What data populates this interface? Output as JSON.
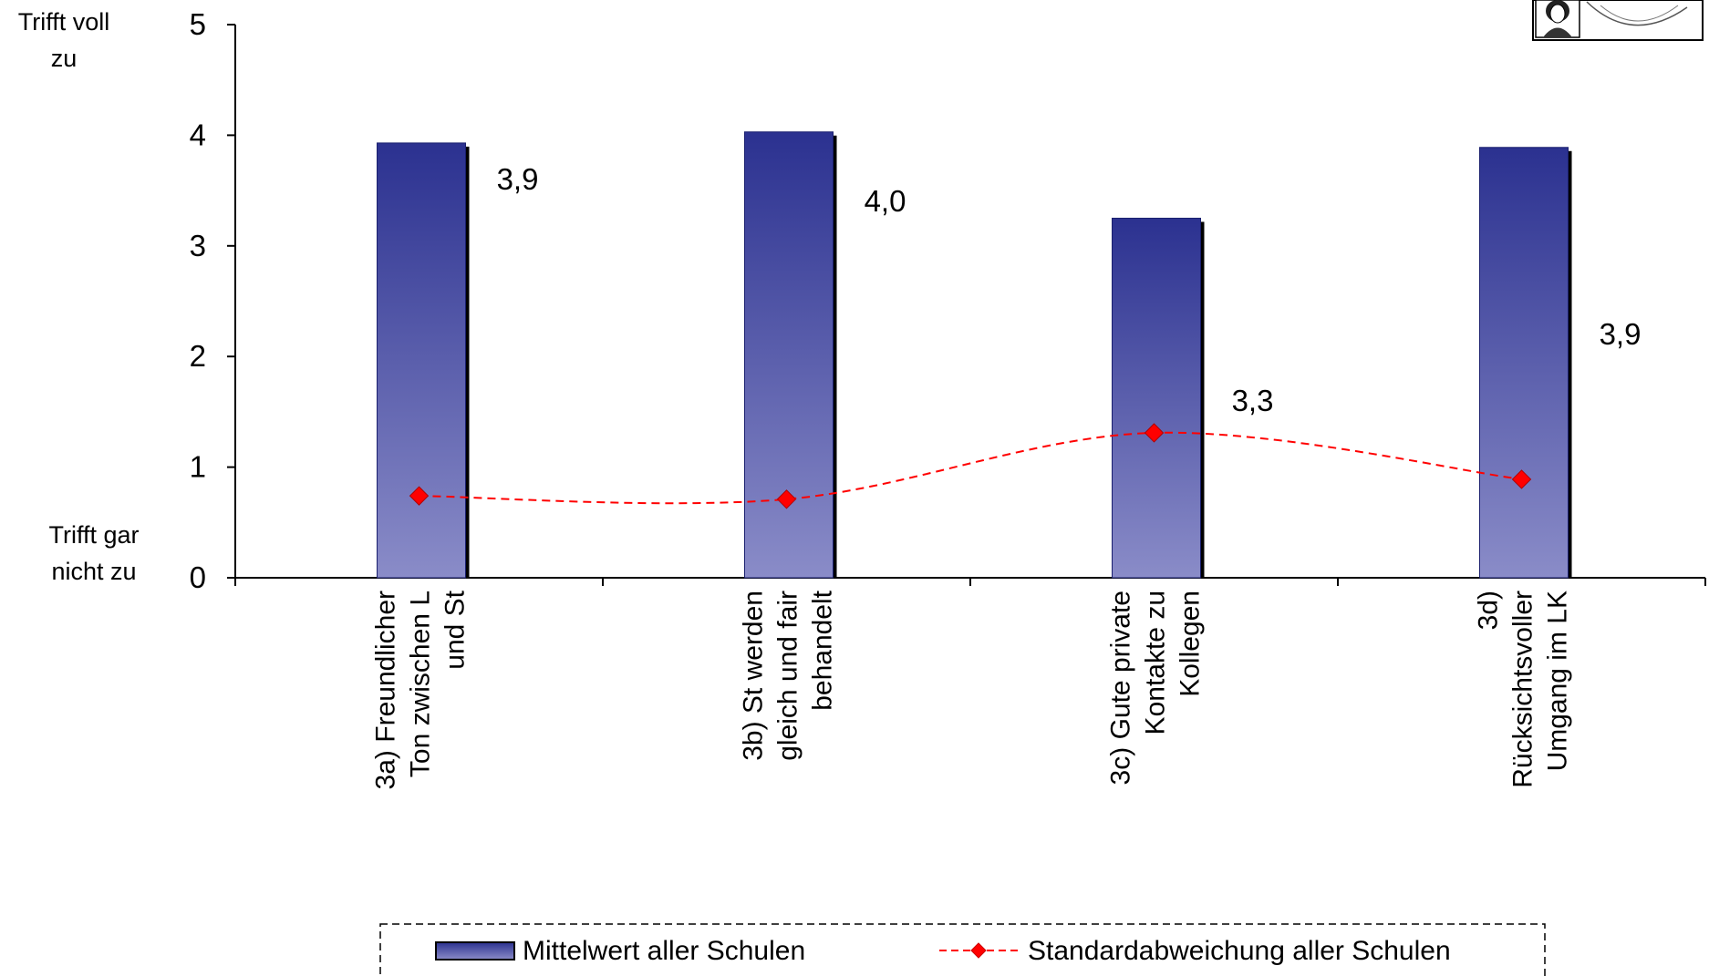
{
  "chart_data": {
    "type": "bar",
    "categories": [
      [
        "3a) Freundlicher",
        "Ton zwischen L",
        "und St"
      ],
      [
        "3b) St werden",
        "gleich und fair",
        "behandelt"
      ],
      [
        "3c) Gute private",
        "Kontakte zu",
        "Kollegen"
      ],
      [
        "3d)",
        "Rücksichtsvoller",
        "Umgang im LK"
      ]
    ],
    "series": [
      {
        "name": "Mittelwert aller Schulen",
        "type": "bar",
        "values": [
          3.93,
          4.03,
          3.25,
          3.89
        ],
        "data_labels": [
          "3,9",
          "4,0",
          "3,3",
          "3,9"
        ],
        "color_top": "#2b3190",
        "color_bottom": "#8a8cc8"
      },
      {
        "name": "Standardabweichung aller Schulen",
        "type": "line",
        "style": "dashed-smooth",
        "marker": "diamond",
        "values": [
          0.74,
          0.71,
          1.31,
          0.89
        ],
        "color": "#ff0000"
      }
    ],
    "ylim": [
      0,
      5
    ],
    "yticks": [
      "0",
      "1",
      "2",
      "3",
      "4",
      "5"
    ],
    "ytick_values": [
      0,
      1,
      2,
      3,
      4,
      5
    ],
    "y_top_label": [
      "Trifft voll",
      "zu"
    ],
    "y_bottom_label": [
      "Trifft gar",
      "nicht zu"
    ],
    "legend": {
      "position": "bottom",
      "entries": [
        "Mittelwert aller Schulen",
        "Standardabweichung aller Schulen"
      ]
    },
    "grid": false
  },
  "logo": {
    "icon": "university-seal-logo"
  }
}
